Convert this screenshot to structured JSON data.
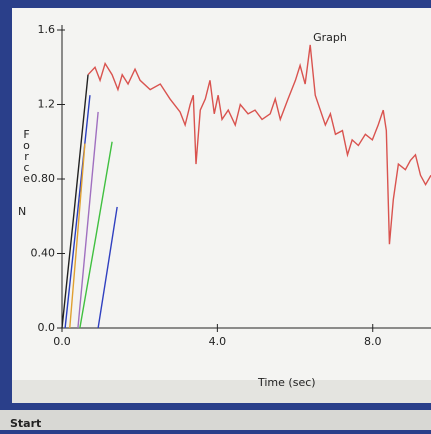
{
  "chart_data": {
    "type": "line",
    "title": "Graph",
    "y_label": "Force",
    "y_unit": "N",
    "x_label": "Time (sec)",
    "xlim": [
      0,
      9.5
    ],
    "ylim": [
      0,
      1.6
    ],
    "xticks": [
      {
        "value": 0,
        "label": "0.0"
      },
      {
        "value": 4,
        "label": "4.0"
      },
      {
        "value": 8,
        "label": "8.0"
      }
    ],
    "yticks": [
      {
        "value": 0,
        "label": "0.0"
      },
      {
        "value": 0.4,
        "label": "0.40"
      },
      {
        "value": 0.8,
        "label": "0.80"
      },
      1.2,
      1.6
    ],
    "series": [
      {
        "color": "#d9534f",
        "x": [
          0.67,
          0.85,
          0.98,
          1.11,
          1.29,
          1.44,
          1.55,
          1.7,
          1.88,
          2.01,
          2.27,
          2.53,
          2.78,
          3.04,
          3.17,
          3.3,
          3.38,
          3.45,
          3.56,
          3.69,
          3.81,
          3.92,
          4.02,
          4.12,
          4.28,
          4.46,
          4.59,
          4.79,
          4.97,
          5.15,
          5.36,
          5.49,
          5.62,
          5.82,
          6.01,
          6.13,
          6.26,
          6.39,
          6.52,
          6.65,
          6.78,
          6.91,
          7.04,
          7.22,
          7.35,
          7.47,
          7.63,
          7.81,
          7.99,
          8.14,
          8.27,
          8.35,
          8.43,
          8.53,
          8.66,
          8.84,
          8.97,
          9.1,
          9.23,
          9.36,
          9.5
        ],
        "values": [
          1.36,
          1.4,
          1.33,
          1.42,
          1.36,
          1.28,
          1.36,
          1.31,
          1.39,
          1.33,
          1.28,
          1.31,
          1.23,
          1.16,
          1.09,
          1.2,
          1.25,
          0.88,
          1.17,
          1.23,
          1.33,
          1.15,
          1.25,
          1.12,
          1.17,
          1.09,
          1.2,
          1.15,
          1.17,
          1.12,
          1.15,
          1.23,
          1.12,
          1.23,
          1.33,
          1.41,
          1.31,
          1.52,
          1.25,
          1.17,
          1.09,
          1.15,
          1.04,
          1.06,
          0.93,
          1.01,
          0.98,
          1.04,
          1.01,
          1.09,
          1.17,
          1.06,
          0.45,
          0.69,
          0.88,
          0.85,
          0.9,
          0.93,
          0.82,
          0.77,
          0.82
        ]
      },
      {
        "color": "#222222",
        "x": [
          0,
          0.3,
          0.67
        ],
        "values": [
          0,
          0.6,
          1.36
        ]
      },
      {
        "color": "#2b3fbf",
        "x": [
          0.08,
          0.4,
          0.72
        ],
        "values": [
          0,
          0.62,
          1.25
        ]
      },
      {
        "color": "#e0a030",
        "x": [
          0.2,
          0.4,
          0.59
        ],
        "values": [
          0,
          0.5,
          0.99
        ]
      },
      {
        "color": "#a070c0",
        "x": [
          0.41,
          0.67,
          0.93
        ],
        "values": [
          0,
          0.58,
          1.16
        ]
      },
      {
        "color": "#40c040",
        "x": [
          0.46,
          0.88,
          1.29
        ],
        "values": [
          0,
          0.5,
          1.0
        ]
      },
      {
        "color": "#3040c0",
        "x": [
          0.93,
          1.18,
          1.42
        ],
        "values": [
          0,
          0.33,
          0.65
        ]
      }
    ]
  },
  "taskbar": {
    "start": "Start"
  }
}
